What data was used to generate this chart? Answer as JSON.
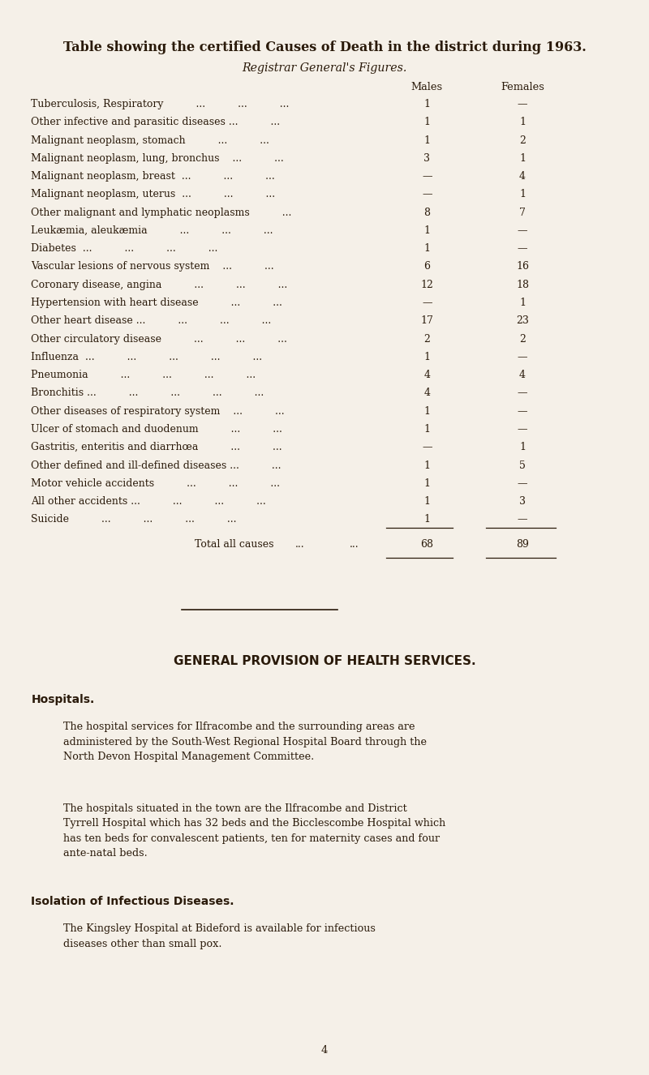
{
  "bg_color": "#f5f0e8",
  "text_color": "#2a1a0a",
  "title": "Table showing the certified Causes of Death in the district during 1963.",
  "subtitle": "Registrar General's Figures.",
  "col_males": "Males",
  "col_females": "Females",
  "table_rows": [
    {
      "cause": "Tuberculosis, Respiratory          ...          ...          ...",
      "males": "1",
      "females": "—"
    },
    {
      "cause": "Other infective and parasitic diseases ...          ...",
      "males": "1",
      "females": "1"
    },
    {
      "cause": "Malignant neoplasm, stomach          ...          ...",
      "males": "1",
      "females": "2"
    },
    {
      "cause": "Malignant neoplasm, lung, bronchus    ...          ...",
      "males": "3",
      "females": "1"
    },
    {
      "cause": "Malignant neoplasm, breast  ...          ...          ...",
      "males": "—",
      "females": "4"
    },
    {
      "cause": "Malignant neoplasm, uterus  ...          ...          ...",
      "males": "—",
      "females": "1"
    },
    {
      "cause": "Other malignant and lymphatic neoplasms          ...",
      "males": "8",
      "females": "7"
    },
    {
      "cause": "Leukæmia, aleukæmia          ...          ...          ...",
      "males": "1",
      "females": "—"
    },
    {
      "cause": "Diabetes  ...          ...          ...          ...",
      "males": "1",
      "females": "—"
    },
    {
      "cause": "Vascular lesions of nervous system    ...          ...",
      "males": "6",
      "females": "16"
    },
    {
      "cause": "Coronary disease, angina          ...          ...          ...",
      "males": "12",
      "females": "18"
    },
    {
      "cause": "Hypertension with heart disease          ...          ...",
      "males": "—",
      "females": "1"
    },
    {
      "cause": "Other heart disease ...          ...          ...          ...",
      "males": "17",
      "females": "23"
    },
    {
      "cause": "Other circulatory disease          ...          ...          ...",
      "males": "2",
      "females": "2"
    },
    {
      "cause": "Influenza  ...          ...          ...          ...          ...",
      "males": "1",
      "females": "—"
    },
    {
      "cause": "Pneumonia          ...          ...          ...          ...",
      "males": "4",
      "females": "4"
    },
    {
      "cause": "Bronchitis ...          ...          ...          ...          ...",
      "males": "4",
      "females": "—"
    },
    {
      "cause": "Other diseases of respiratory system    ...          ...",
      "males": "1",
      "females": "—"
    },
    {
      "cause": "Ulcer of stomach and duodenum          ...          ...",
      "males": "1",
      "females": "—"
    },
    {
      "cause": "Gastritis, enteritis and diarrhœa          ...          ...",
      "males": "—",
      "females": "1"
    },
    {
      "cause": "Other defined and ill-defined diseases ...          ...",
      "males": "1",
      "females": "5"
    },
    {
      "cause": "Motor vehicle accidents          ...          ...          ...",
      "males": "1",
      "females": "—"
    },
    {
      "cause": "All other accidents ...          ...          ...          ...",
      "males": "1",
      "females": "3"
    },
    {
      "cause": "Suicide          ...          ...          ...          ...",
      "males": "1",
      "females": "—"
    }
  ],
  "total_label": "Total all causes",
  "total_dots": "...          ...",
  "total_males": "68",
  "total_females": "89",
  "section_title": "GENERAL PROVISION OF HEALTH SERVICES.",
  "hospitals_heading": "Hospitals.",
  "hospitals_p1": "The hospital services for Ilfracombe and the surrounding areas are\nadministered by the South-West Regional Hospital Board through the\nNorth Devon Hospital Management Committee.",
  "hospitals_p2": "The hospitals situated in the town are the Ilfracombe and District\nTyrrell Hospital which has 32 beds and the Bicclescombe Hospital which\nhas ten beds for convalescent patients, ten for maternity cases and four\nante-natal beds.",
  "isolation_heading": "Isolation of Infectious Diseases.",
  "isolation_p": "The Kingsley Hospital at Bideford is available for infectious\ndiseases other than small pox.",
  "page_number": "4"
}
